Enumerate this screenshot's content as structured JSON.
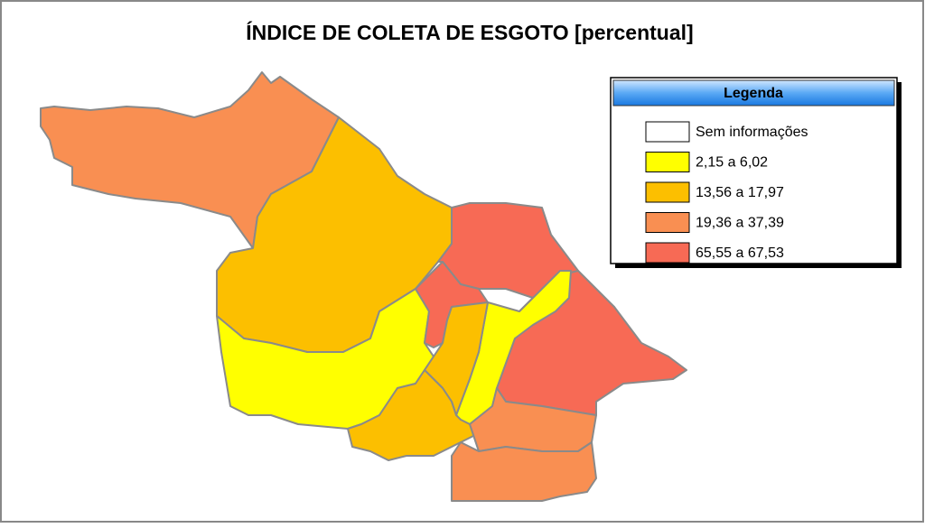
{
  "title": "ÍNDICE DE COLETA DE ESGOTO [percentual]",
  "legend": {
    "title": "Legenda",
    "items": [
      {
        "label": "Sem informações",
        "color": "#ffffff"
      },
      {
        "label": "2,15 a 6,02",
        "color": "#ffff00"
      },
      {
        "label": "13,56 a 17,97",
        "color": "#fcbf00"
      },
      {
        "label": "19,36 a 37,39",
        "color": "#f98f52"
      },
      {
        "label": "65,55 a 67,53",
        "color": "#f76a55"
      }
    ]
  }
}
